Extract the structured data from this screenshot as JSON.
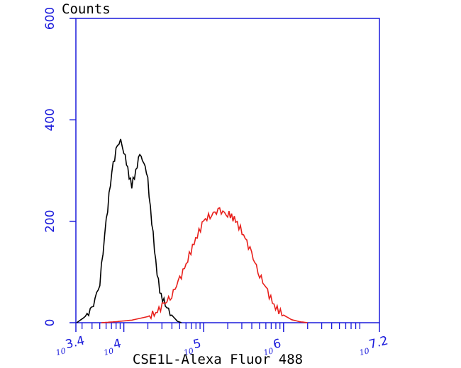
{
  "chart_data": {
    "type": "area",
    "title": "",
    "xlabel": "CSE1L-Alexa Fluor 488",
    "ylabel": "Counts",
    "x_scale": "log10",
    "xlim_log10": [
      3.4,
      7.2
    ],
    "ylim": [
      0,
      600
    ],
    "y_ticks": [
      0,
      200,
      400,
      600
    ],
    "y_tick_labels": [
      "0",
      "200",
      "400",
      "600"
    ],
    "x_ticks": [
      {
        "base": "10",
        "exp": "3.4",
        "log": 3.4
      },
      {
        "base": "10",
        "exp": "4",
        "log": 4
      },
      {
        "base": "10",
        "exp": "5",
        "log": 5
      },
      {
        "base": "10",
        "exp": "6",
        "log": 6
      },
      {
        "base": "10",
        "exp": "7.2",
        "log": 7.2
      }
    ],
    "grid": false,
    "legend": "none",
    "colors": {
      "axis": "#1a1adb",
      "control": "#000000",
      "sample": "#e8201c"
    },
    "series": [
      {
        "color": "#000000",
        "log_x": [
          3.41,
          3.5,
          3.6,
          3.7,
          3.78,
          3.85,
          3.92,
          3.96,
          4.0,
          4.05,
          4.1,
          4.15,
          4.2,
          4.25,
          4.3,
          4.35,
          4.4,
          4.45,
          4.52,
          4.6,
          4.67,
          4.72
        ],
        "y": [
          0,
          10,
          25,
          80,
          200,
          300,
          350,
          358,
          340,
          300,
          270,
          300,
          330,
          320,
          280,
          200,
          120,
          60,
          35,
          15,
          3,
          0
        ]
      },
      {
        "color": "#e8201c",
        "log_x": [
          3.72,
          3.9,
          4.1,
          4.3,
          4.4,
          4.5,
          4.6,
          4.7,
          4.8,
          4.9,
          5.0,
          5.1,
          5.2,
          5.3,
          5.35,
          5.4,
          5.5,
          5.6,
          5.7,
          5.8,
          5.9,
          6.0,
          6.1,
          6.2,
          6.3
        ],
        "y": [
          0,
          2,
          5,
          12,
          20,
          35,
          55,
          85,
          125,
          165,
          200,
          215,
          220,
          215,
          210,
          200,
          175,
          135,
          95,
          60,
          30,
          15,
          6,
          2,
          0
        ]
      }
    ]
  }
}
